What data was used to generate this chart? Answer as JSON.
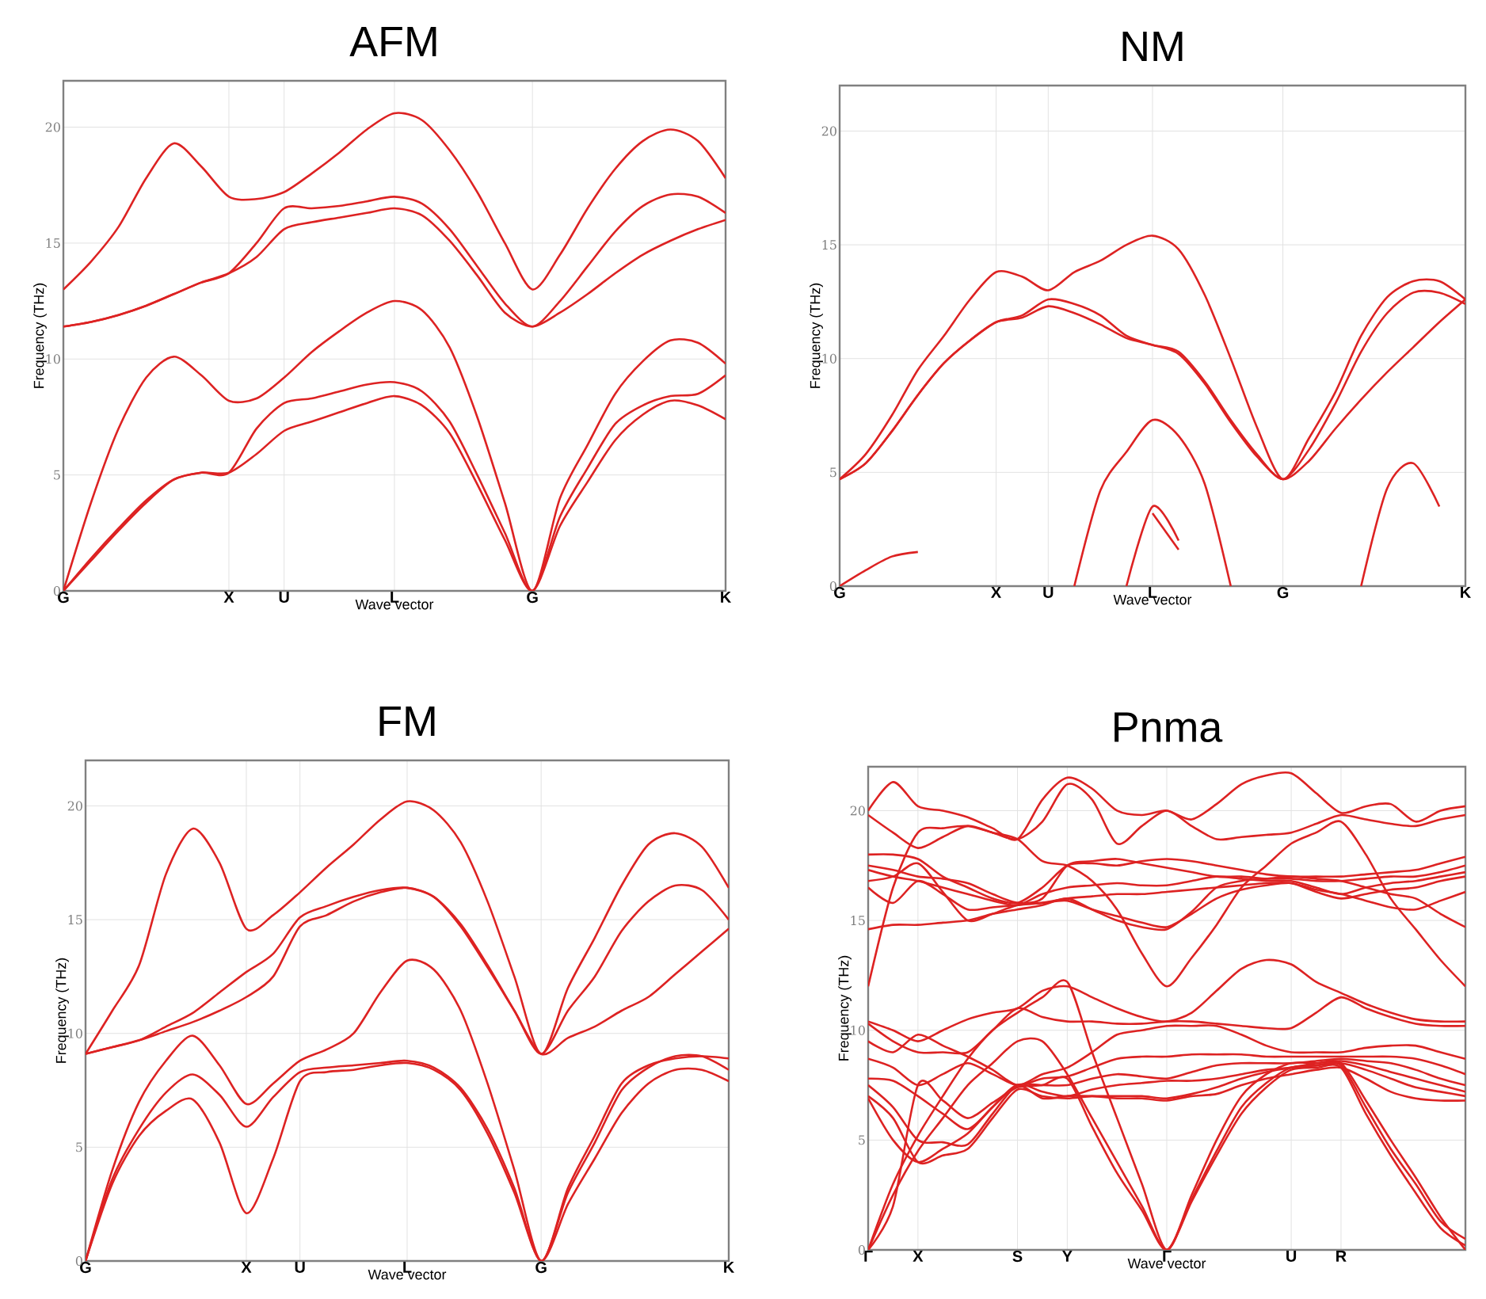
{
  "chart_data": [
    {
      "type": "line",
      "title": "AFM",
      "xlabel": "Wave vector",
      "ylabel": "Frequency (THz)",
      "ylim": [
        0,
        22
      ],
      "yticks": [
        0,
        5,
        10,
        15,
        20
      ],
      "grid": true,
      "categories": [
        "G",
        null,
        null,
        null,
        null,
        null,
        "X",
        null,
        "U",
        null,
        null,
        null,
        "L",
        null,
        null,
        null,
        null,
        "G",
        null,
        null,
        null,
        null,
        null,
        null,
        "K"
      ],
      "series": [
        {
          "color": "#dd2222",
          "values": [
            0,
            3.8,
            7.0,
            9.2,
            10.1,
            9.3,
            8.2,
            8.3,
            9.2,
            10.3,
            11.2,
            12.0,
            12.5,
            12.1,
            10.5,
            7.5,
            3.8,
            0,
            4.0,
            6.3,
            8.5,
            9.9,
            10.8,
            10.7,
            9.8
          ]
        },
        {
          "color": "#dd2222",
          "values": [
            0,
            1.4,
            2.7,
            3.9,
            4.8,
            5.1,
            5.1,
            7.0,
            8.1,
            8.3,
            8.6,
            8.9,
            9.0,
            8.6,
            7.3,
            5.0,
            2.5,
            0,
            3.2,
            5.3,
            7.2,
            8.0,
            8.4,
            8.5,
            9.3
          ]
        },
        {
          "color": "#dd2222",
          "values": [
            0,
            1.3,
            2.6,
            3.8,
            4.8,
            5.1,
            5.1,
            5.9,
            6.9,
            7.3,
            7.7,
            8.1,
            8.4,
            8.0,
            6.8,
            4.6,
            2.2,
            0,
            2.8,
            4.7,
            6.5,
            7.6,
            8.2,
            8.0,
            7.4
          ]
        },
        {
          "color": "#dd2222",
          "values": [
            13.0,
            14.2,
            15.7,
            17.8,
            19.3,
            18.3,
            17.0,
            16.9,
            17.2,
            18.0,
            18.9,
            19.9,
            20.6,
            20.3,
            19.0,
            17.2,
            15.0,
            13.0,
            14.5,
            16.5,
            18.2,
            19.4,
            19.9,
            19.4,
            17.8
          ]
        },
        {
          "color": "#dd2222",
          "values": [
            11.4,
            11.6,
            11.9,
            12.3,
            12.8,
            13.3,
            13.7,
            15.0,
            16.5,
            16.5,
            16.6,
            16.8,
            17.0,
            16.7,
            15.6,
            14.0,
            12.4,
            11.4,
            12.5,
            14.0,
            15.5,
            16.6,
            17.1,
            17.0,
            16.3
          ]
        },
        {
          "color": "#dd2222",
          "values": [
            11.4,
            11.6,
            11.9,
            12.3,
            12.8,
            13.3,
            13.7,
            14.4,
            15.6,
            15.9,
            16.1,
            16.3,
            16.5,
            16.2,
            15.1,
            13.6,
            12.0,
            11.4,
            12.0,
            12.8,
            13.7,
            14.5,
            15.1,
            15.6,
            16.0
          ]
        }
      ]
    },
    {
      "type": "line",
      "title": "NM",
      "xlabel": "Wave vector",
      "ylabel": "Frequency (THz)",
      "ylim": [
        0,
        22
      ],
      "yticks": [
        0,
        5,
        10,
        15,
        20
      ],
      "grid": true,
      "categories": [
        "G",
        null,
        null,
        null,
        null,
        null,
        "X",
        null,
        "U",
        null,
        null,
        null,
        "L",
        null,
        null,
        null,
        null,
        "G",
        null,
        null,
        null,
        null,
        null,
        null,
        "K"
      ],
      "series": [
        {
          "color": "#dd2222",
          "values": [
            4.7,
            5.8,
            7.5,
            9.5,
            11.0,
            12.6,
            13.8,
            13.6,
            13.0,
            13.8,
            14.3,
            15.0,
            15.4,
            14.8,
            12.8,
            10.0,
            7.0,
            4.7,
            6.5,
            8.5,
            11.0,
            12.7,
            13.4,
            13.4,
            12.6
          ]
        },
        {
          "color": "#dd2222",
          "values": [
            4.7,
            5.4,
            6.8,
            8.4,
            9.8,
            10.8,
            11.6,
            11.9,
            12.6,
            12.4,
            11.9,
            11.0,
            10.6,
            10.3,
            9.0,
            7.3,
            5.8,
            4.7,
            6.0,
            8.0,
            10.3,
            12.0,
            12.9,
            12.9,
            12.4
          ]
        },
        {
          "color": "#dd2222",
          "values": [
            4.7,
            5.4,
            6.8,
            8.4,
            9.8,
            10.8,
            11.6,
            11.8,
            12.3,
            12.0,
            11.5,
            10.9,
            10.6,
            10.2,
            8.9,
            7.2,
            5.7,
            4.7,
            5.5,
            6.9,
            8.2,
            9.4,
            10.5,
            11.6,
            12.6
          ]
        },
        {
          "color": "#dd2222",
          "values": [
            0,
            0.7,
            1.3,
            1.5,
            null,
            null,
            null,
            null,
            null,
            null,
            null,
            null,
            null,
            null,
            null,
            null,
            null,
            null,
            null,
            null,
            null,
            null,
            null,
            null,
            null
          ]
        },
        {
          "color": "#dd2222",
          "values": [
            null,
            null,
            null,
            null,
            null,
            null,
            null,
            null,
            null,
            0,
            4.2,
            5.9,
            7.3,
            6.6,
            4.5,
            0,
            null,
            null,
            null,
            null,
            null,
            null,
            null,
            null,
            null
          ]
        },
        {
          "color": "#dd2222",
          "values": [
            null,
            null,
            null,
            null,
            null,
            null,
            null,
            null,
            null,
            null,
            null,
            0,
            3.5,
            2.0,
            null,
            null,
            null,
            null,
            null,
            null,
            null,
            null,
            null,
            null,
            null
          ]
        },
        {
          "color": "#dd2222",
          "values": [
            null,
            null,
            null,
            null,
            null,
            null,
            null,
            null,
            null,
            null,
            null,
            null,
            3.2,
            1.6,
            null,
            null,
            null,
            null,
            null,
            null,
            null,
            null,
            null,
            null,
            null
          ]
        },
        {
          "color": "#dd2222",
          "values": [
            null,
            null,
            null,
            null,
            null,
            null,
            null,
            null,
            null,
            null,
            null,
            null,
            null,
            null,
            null,
            null,
            null,
            null,
            null,
            null,
            0,
            4.3,
            5.4,
            3.5,
            null
          ]
        }
      ]
    },
    {
      "type": "line",
      "title": "FM",
      "xlabel": "Wave vector",
      "ylabel": "Frequency (THz)",
      "ylim": [
        0,
        22
      ],
      "yticks": [
        0,
        5,
        10,
        15,
        20
      ],
      "grid": true,
      "categories": [
        "G",
        null,
        null,
        null,
        null,
        null,
        "X",
        null,
        "U",
        null,
        null,
        null,
        "L",
        null,
        null,
        null,
        null,
        "G",
        null,
        null,
        null,
        null,
        null,
        null,
        "K"
      ],
      "series": [
        {
          "color": "#dd2222",
          "values": [
            9.1,
            11.0,
            13.0,
            17.0,
            19.0,
            17.5,
            14.6,
            15.2,
            16.2,
            17.3,
            18.3,
            19.4,
            20.2,
            19.8,
            18.4,
            15.8,
            12.5,
            9.1,
            12.0,
            14.2,
            16.5,
            18.3,
            18.8,
            18.2,
            16.4
          ]
        },
        {
          "color": "#dd2222",
          "values": [
            9.1,
            9.4,
            9.7,
            10.3,
            10.9,
            11.8,
            12.7,
            13.5,
            15.1,
            15.6,
            16.0,
            16.3,
            16.4,
            16.0,
            14.8,
            13.0,
            11.0,
            9.1,
            11.0,
            12.5,
            14.5,
            15.8,
            16.5,
            16.3,
            15.0
          ]
        },
        {
          "color": "#dd2222",
          "values": [
            9.1,
            9.4,
            9.7,
            10.1,
            10.5,
            11.0,
            11.6,
            12.5,
            14.7,
            15.2,
            15.8,
            16.2,
            16.4,
            16.0,
            14.7,
            12.9,
            11.0,
            9.1,
            9.8,
            10.3,
            11.0,
            11.6,
            12.6,
            13.6,
            14.6
          ]
        },
        {
          "color": "#dd2222",
          "values": [
            0,
            4.0,
            7.0,
            8.8,
            9.9,
            8.6,
            6.9,
            7.8,
            8.8,
            9.3,
            10.0,
            11.8,
            13.2,
            12.8,
            11.0,
            7.8,
            4.0,
            0,
            3.2,
            5.5,
            7.8,
            8.6,
            8.9,
            9.0,
            8.9
          ]
        },
        {
          "color": "#dd2222",
          "values": [
            0,
            3.6,
            5.8,
            7.4,
            8.2,
            7.3,
            5.9,
            7.2,
            8.3,
            8.5,
            8.6,
            8.7,
            8.8,
            8.5,
            7.6,
            5.8,
            3.2,
            0,
            3.0,
            5.2,
            7.5,
            8.5,
            9.0,
            9.0,
            8.4
          ]
        },
        {
          "color": "#dd2222",
          "values": [
            0,
            3.4,
            5.5,
            6.6,
            7.1,
            5.2,
            2.1,
            4.5,
            7.9,
            8.3,
            8.4,
            8.6,
            8.7,
            8.4,
            7.5,
            5.6,
            3.0,
            0,
            2.5,
            4.5,
            6.5,
            7.8,
            8.4,
            8.4,
            7.9
          ]
        }
      ]
    },
    {
      "type": "line",
      "title": "Pnma",
      "xlabel": "Wave vector",
      "ylabel": "Frequency (THz)",
      "ylim": [
        0,
        22
      ],
      "yticks": [
        0,
        5,
        10,
        15,
        20
      ],
      "grid": true,
      "categories": [
        "Γ",
        null,
        "X",
        null,
        null,
        null,
        "S",
        null,
        "Y",
        null,
        null,
        null,
        "Γ",
        null,
        null,
        null,
        null,
        "U",
        null,
        "R",
        null,
        null,
        null,
        null,
        null
      ],
      "series": [
        {
          "color": "#dd2222",
          "values": [
            20.0,
            21.3,
            20.2,
            20.0,
            19.7,
            19.2,
            18.7,
            20.5,
            21.5,
            21.0,
            20.0,
            19.8,
            20.0,
            19.6,
            20.3,
            21.2,
            21.6,
            21.7,
            20.8,
            19.9,
            20.2,
            20.3,
            19.5,
            20.0,
            20.2
          ]
        },
        {
          "color": "#dd2222",
          "values": [
            19.8,
            19.0,
            18.3,
            18.8,
            19.3,
            19.0,
            18.7,
            19.5,
            21.2,
            20.5,
            18.5,
            19.3,
            20.0,
            19.3,
            18.7,
            18.8,
            18.9,
            19.0,
            19.4,
            19.8,
            19.6,
            19.4,
            19.3,
            19.6,
            19.8
          ]
        },
        {
          "color": "#dd2222",
          "values": [
            18.0,
            18.0,
            17.8,
            17.0,
            16.5,
            16.0,
            15.8,
            16.5,
            17.5,
            17.6,
            17.5,
            17.7,
            17.8,
            17.7,
            17.5,
            17.3,
            17.1,
            17.0,
            17.0,
            17.0,
            17.1,
            17.2,
            17.3,
            17.6,
            17.9
          ]
        },
        {
          "color": "#dd2222",
          "values": [
            17.5,
            17.3,
            17.0,
            16.9,
            16.7,
            16.2,
            15.8,
            16.0,
            17.5,
            17.7,
            17.8,
            17.6,
            17.4,
            17.2,
            17.0,
            17.0,
            16.9,
            16.9,
            16.8,
            16.8,
            16.9,
            17.0,
            17.0,
            17.2,
            17.5
          ]
        },
        {
          "color": "#dd2222",
          "values": [
            17.3,
            17.0,
            16.8,
            16.5,
            16.2,
            15.9,
            15.7,
            16.2,
            16.5,
            16.6,
            16.7,
            16.6,
            16.6,
            16.8,
            17.0,
            16.9,
            16.8,
            16.8,
            16.5,
            16.2,
            16.5,
            16.7,
            16.8,
            17.0,
            17.2
          ]
        },
        {
          "color": "#dd2222",
          "values": [
            16.8,
            17.0,
            17.6,
            16.3,
            15.0,
            15.3,
            15.7,
            15.8,
            16.0,
            16.1,
            16.2,
            16.2,
            16.3,
            16.4,
            16.5,
            16.6,
            16.7,
            16.7,
            16.3,
            16.0,
            16.2,
            16.4,
            16.5,
            16.8,
            17.0
          ]
        },
        {
          "color": "#dd2222",
          "values": [
            16.5,
            15.8,
            16.8,
            16.2,
            15.5,
            15.6,
            15.7,
            15.8,
            15.9,
            15.5,
            15.2,
            14.9,
            14.7,
            15.3,
            16.0,
            16.4,
            16.6,
            16.7,
            16.4,
            16.2,
            15.9,
            15.6,
            15.5,
            15.9,
            16.3
          ]
        },
        {
          "color": "#dd2222",
          "values": [
            14.6,
            14.8,
            14.8,
            14.9,
            15.0,
            15.3,
            15.5,
            15.7,
            16.0,
            15.5,
            15.0,
            14.7,
            14.6,
            15.4,
            16.5,
            16.8,
            16.9,
            17.0,
            16.9,
            16.8,
            16.5,
            16.2,
            16.0,
            15.3,
            14.7
          ]
        },
        {
          "color": "#dd2222",
          "values": [
            12.0,
            16.5,
            19.0,
            19.2,
            19.3,
            19.0,
            18.7,
            17.7,
            17.5,
            16.8,
            15.5,
            13.5,
            12.0,
            13.3,
            14.8,
            16.5,
            17.5,
            18.5,
            19.0,
            19.5,
            18.0,
            16.0,
            14.6,
            13.2,
            12.0
          ]
        },
        {
          "color": "#dd2222",
          "values": [
            10.4,
            10.0,
            9.5,
            10.0,
            10.5,
            10.8,
            11.0,
            11.8,
            12.0,
            11.5,
            11.0,
            10.6,
            10.4,
            10.8,
            11.8,
            12.8,
            13.2,
            13.0,
            12.2,
            11.7,
            11.2,
            10.8,
            10.5,
            10.4,
            10.4
          ]
        },
        {
          "color": "#dd2222",
          "values": [
            10.3,
            9.5,
            9.0,
            9.0,
            9.0,
            10.0,
            11.0,
            10.6,
            10.4,
            10.4,
            10.3,
            10.3,
            10.4,
            10.4,
            10.3,
            10.2,
            10.1,
            10.1,
            10.8,
            11.5,
            11.0,
            10.6,
            10.3,
            10.2,
            10.2
          ]
        },
        {
          "color": "#dd2222",
          "values": [
            9.5,
            9.0,
            9.8,
            9.3,
            8.8,
            8.2,
            7.5,
            8.0,
            8.3,
            9.0,
            9.8,
            10.0,
            10.2,
            10.2,
            10.2,
            9.8,
            9.3,
            9.0,
            9.0,
            9.0,
            9.2,
            9.3,
            9.3,
            9.0,
            8.7
          ]
        },
        {
          "color": "#dd2222",
          "values": [
            8.7,
            8.3,
            7.5,
            8.0,
            8.5,
            8.0,
            7.5,
            7.8,
            7.9,
            8.3,
            8.7,
            8.8,
            8.8,
            8.9,
            8.9,
            8.9,
            8.8,
            8.8,
            8.8,
            8.8,
            8.8,
            8.8,
            8.7,
            8.4,
            8.0
          ]
        },
        {
          "color": "#dd2222",
          "values": [
            7.8,
            7.7,
            7.0,
            6.2,
            5.5,
            6.5,
            7.5,
            7.5,
            7.5,
            7.8,
            8.0,
            7.9,
            7.8,
            8.1,
            8.4,
            8.5,
            8.5,
            8.5,
            8.6,
            8.7,
            8.6,
            8.5,
            8.2,
            7.8,
            7.5
          ]
        },
        {
          "color": "#dd2222",
          "values": [
            7.5,
            6.5,
            5.0,
            4.9,
            4.8,
            6.2,
            7.5,
            7.2,
            7.0,
            7.3,
            7.5,
            7.6,
            7.7,
            7.7,
            7.8,
            8.0,
            8.2,
            8.3,
            8.5,
            8.6,
            8.4,
            8.1,
            7.8,
            7.5,
            7.2
          ]
        },
        {
          "color": "#dd2222",
          "values": [
            7.0,
            6.0,
            4.0,
            4.3,
            4.6,
            6.0,
            7.3,
            7.0,
            6.9,
            7.0,
            7.0,
            7.0,
            6.9,
            7.1,
            7.4,
            7.8,
            8.1,
            8.3,
            8.4,
            8.5,
            8.2,
            7.8,
            7.4,
            7.2,
            7.0
          ]
        },
        {
          "color": "#dd2222",
          "values": [
            6.9,
            5.0,
            4.0,
            4.6,
            5.3,
            6.5,
            7.5,
            6.9,
            7.0,
            7.0,
            6.9,
            6.9,
            6.8,
            7.0,
            7.1,
            7.5,
            7.8,
            8.0,
            8.2,
            8.3,
            7.8,
            7.2,
            6.9,
            6.8,
            6.8
          ]
        },
        {
          "color": "#dd2222",
          "values": [
            0,
            3.0,
            5.2,
            7.0,
            8.7,
            10.0,
            10.8,
            11.5,
            12.2,
            9.0,
            6.0,
            3.0,
            0,
            2.5,
            5.0,
            7.0,
            8.0,
            8.5,
            8.5,
            8.5,
            6.8,
            5.0,
            3.3,
            1.5,
            0
          ]
        },
        {
          "color": "#dd2222",
          "values": [
            0,
            2.5,
            4.5,
            6.0,
            7.5,
            8.5,
            9.5,
            9.5,
            8.0,
            6.0,
            4.0,
            2.0,
            0,
            2.3,
            4.5,
            6.5,
            7.6,
            8.3,
            8.4,
            8.4,
            6.5,
            4.6,
            3.0,
            1.3,
            0.5
          ]
        },
        {
          "color": "#dd2222",
          "values": [
            0,
            2.0,
            7.5,
            6.8,
            6.0,
            6.7,
            7.4,
            7.5,
            7.8,
            5.6,
            3.5,
            1.8,
            0,
            2.2,
            4.3,
            6.2,
            7.4,
            8.2,
            8.3,
            8.3,
            6.2,
            4.3,
            2.6,
            1.0,
            0.2
          ]
        }
      ]
    }
  ]
}
